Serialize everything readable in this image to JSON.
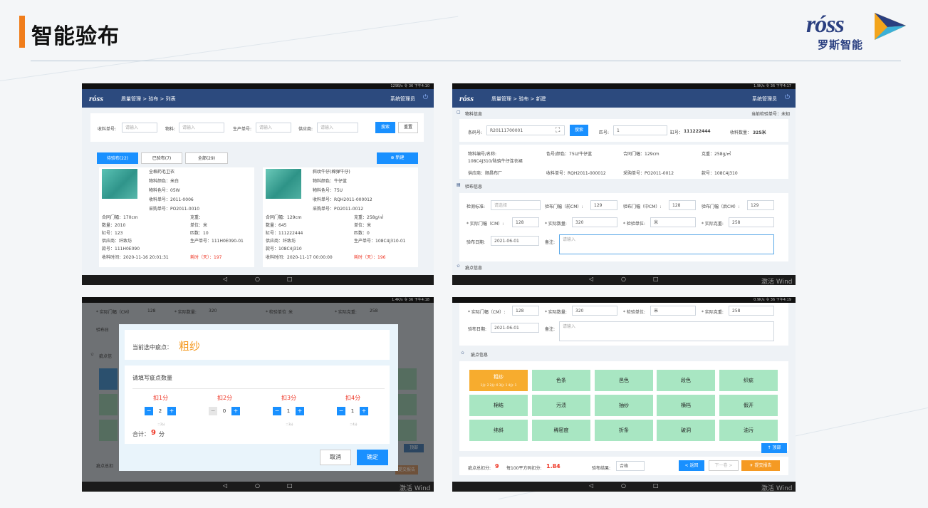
{
  "page": {
    "title": "智能验布"
  },
  "brand": {
    "logo_word": "róss",
    "logo_cn": "罗斯智能",
    "accent_color": "#f07d1b",
    "brand_blue": "#2a3f80"
  },
  "device": {
    "status_1": "129B/s 令 36 下午4:10",
    "status_2": "1.9K/s 令 36 下午4:17",
    "status_3": "1.4K/s 令 36 下午4:18",
    "status_4": "0.9K/s 令 36 下午4:19",
    "nav_back": "◁",
    "nav_home": "○",
    "nav_recent": "□",
    "watermark": "激活 Wind"
  },
  "screen1": {
    "app_logo": "róss",
    "breadcrumb": "质量管理  >  验布  >  列表",
    "user": "系统管理员",
    "filters": [
      {
        "label": "收料单号:",
        "placeholder": "请输入"
      },
      {
        "label": "物料:",
        "placeholder": "请输入"
      },
      {
        "label": "生产单号:",
        "placeholder": "请输入"
      },
      {
        "label": "供应商:",
        "placeholder": "请输入"
      }
    ],
    "search_btn": "搜索",
    "reset_btn": "重置",
    "tabs": [
      "待验布(22)",
      "已验布(7)",
      "全部(29)"
    ],
    "new_btn": "⊕ 新建",
    "cards": [
      {
        "name": "全棉药毛卫衣",
        "lines": [
          "物料颜色：米白",
          "物料色号：05W",
          "收料单号：2011-0006",
          "采购单号：PO2011-0010"
        ],
        "left": [
          "合同门幅：170cm",
          "数量：2010",
          "缸号：123",
          "供应商：纤致坊",
          "款号：111H0E090",
          "收料时间：2020-11-16 20:01:31"
        ],
        "right": [
          "克重：",
          "单位：米",
          "匹数：10",
          "生产单号：111H0E090-01",
          "",
          "耗时（天）：197"
        ]
      },
      {
        "name": "斜纹牛仔(棉弹牛仔)",
        "lines": [
          "物料颜色：牛仔蓝",
          "物料色号：75U",
          "收料单号：RQH2011-000012",
          "采购单号：PO2011-0012"
        ],
        "left": [
          "合同门幅：129cm",
          "数量：645",
          "缸号：111222444",
          "供应商：纤致坊",
          "款号：108C4J310",
          "收料时间：2020-11-17 00:00:00"
        ],
        "right": [
          "克重：258g/㎡",
          "单位：米",
          "匹数：0",
          "生产单号：108C4J310-01",
          "",
          "耗时（天）：196"
        ]
      }
    ]
  },
  "screen2": {
    "app_logo": "róss",
    "breadcrumb": "质量管理  >  验布  >  新建",
    "user": "系统管理员",
    "material_section": "物料信息",
    "current_no_label": "当前检验单号：未知",
    "barcode_label": "条码号:",
    "barcode_value": "R20111700001",
    "scan_icon": "⛶",
    "search_btn": "搜索",
    "piece_label": "匹号:",
    "piece_value": "1",
    "vat_label": "缸号：",
    "vat_value": "111222444",
    "qty_label": "收料数量：",
    "qty_value": "325米",
    "info": [
      "物料编号/名称:",
      "色号/颜色：75U/牛仔蓝",
      "合同门幅：129cm",
      "克重：258g/㎡",
      "108C4J310/陆骁牛仔连衣裙",
      "",
      "",
      "",
      "供应商：顺昌布厂",
      "收料单号：RQH2011-000012",
      "采购单号：PO2011-0012",
      "款号：108C4J310"
    ],
    "inspect_section": "验布信息",
    "standard_label": "检测标准:",
    "standard_placeholder": "请选择",
    "w_front_label": "验布门幅（前CM）:",
    "w_front": "129",
    "w_mid_label": "验布门幅（中CM）:",
    "w_mid": "128",
    "w_back_label": "验布门幅（后CM）:",
    "w_back": "129",
    "actual_w_label": "* 实际门幅（CM）:",
    "actual_w": "128",
    "actual_q_label": "* 实际数量:",
    "actual_q": "320",
    "unit_label": "* 检验单位:",
    "unit": "米",
    "actual_g_label": "* 实际克重:",
    "actual_g": "258",
    "date_label": "验布日期:",
    "date": "2021-06-01",
    "remark_label": "备注:",
    "remark_placeholder": "请输入",
    "defect_section": "疵点信息"
  },
  "screen3": {
    "bg_fields": [
      "* 实际门幅（CM）",
      "128",
      "* 实际数量:",
      "320",
      "* 检验单位",
      "米",
      "* 实际克重:",
      "258"
    ],
    "bg_date": "验布日",
    "bg_defect": "疵点信",
    "bg_total": "疵点总扣",
    "bg_submit": "提交报告",
    "bg_top": "顶部",
    "current_label": "当前选中疵点：",
    "current_value": "粗纱",
    "fill_label": "请填写疵点数量",
    "deducts": [
      {
        "label": "扣1分",
        "value": "2",
        "hint": "＝2分"
      },
      {
        "label": "扣2分",
        "value": "0",
        "hint": ""
      },
      {
        "label": "扣3分",
        "value": "1",
        "hint": "＝3分"
      },
      {
        "label": "扣4分",
        "value": "1",
        "hint": "＝4分"
      }
    ],
    "total_label": "合计：",
    "total_value": "9",
    "total_unit": "分",
    "cancel_btn": "取消",
    "ok_btn": "确定"
  },
  "screen4": {
    "fields": [
      "* 实际门幅（CM）:",
      "128",
      "* 实际数量:",
      "320",
      "* 检验单位:",
      "米",
      "* 实际克重:",
      "258"
    ],
    "date_label": "验布日期:",
    "date": "2021-06-01",
    "remark_label": "备注:",
    "remark_placeholder": "请输入",
    "defect_section": "疵点信息",
    "defects": [
      "粗纱",
      "色条",
      "邑色",
      "段色",
      "织疵",
      "棉结",
      "污渍",
      "抽纱",
      "横档",
      "假开",
      "纬斜",
      "稀密度",
      "折条",
      "破洞",
      "油污"
    ],
    "selected_sub": "1分: 2  2分: 0  3分: 1  4分: 1",
    "top_btn": "↑ 顶部",
    "total_label": "疵点总扣分:",
    "total_value": "9",
    "per100_label": "每100平方码扣分:",
    "per100_value": "1.84",
    "result_label": "验布结果:",
    "result_value": "合格",
    "back_btn": "< 返回",
    "next_btn": "下一卷 >",
    "submit_btn": "✈ 提交报告"
  }
}
